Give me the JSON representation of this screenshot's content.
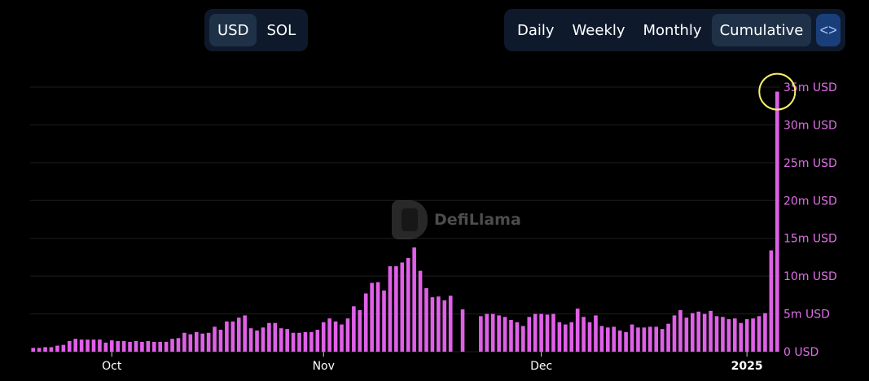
{
  "currency_toggle": {
    "options": [
      "USD",
      "SOL"
    ],
    "selected": "USD"
  },
  "period_toggle": {
    "options": [
      "Daily",
      "Weekly",
      "Monthly",
      "Cumulative"
    ],
    "selected": "Cumulative",
    "embed_icon": "code-icon"
  },
  "watermark": {
    "text": "DefiLlama"
  },
  "colors": {
    "bar": "#e060e8",
    "grid": "#1e1e24",
    "axis_text": "#ffffff",
    "y_label": "#e06fe8",
    "highlight_circle": "#f5f06a"
  },
  "chart_data": {
    "type": "bar",
    "title": "",
    "xlabel": "",
    "ylabel": "",
    "ylim": [
      0,
      35
    ],
    "y_unit": "m USD",
    "y_ticks": [
      "0 USD",
      "5m USD",
      "10m USD",
      "15m USD",
      "20m USD",
      "25m USD",
      "30m USD",
      "35m USD"
    ],
    "x_ticks": [
      "Oct",
      "Nov",
      "Dec",
      "2025"
    ],
    "x_tick_index": [
      13,
      48,
      84,
      118
    ],
    "grid": true,
    "highlight": "circle around last bar",
    "values": [
      0.5,
      0.5,
      0.6,
      0.6,
      0.8,
      0.9,
      1.4,
      1.7,
      1.6,
      1.6,
      1.6,
      1.6,
      1.2,
      1.5,
      1.4,
      1.4,
      1.3,
      1.4,
      1.3,
      1.4,
      1.3,
      1.3,
      1.3,
      1.7,
      1.8,
      2.5,
      2.3,
      2.6,
      2.4,
      2.5,
      3.3,
      2.9,
      4.0,
      4.0,
      4.5,
      4.8,
      3.1,
      2.8,
      3.2,
      3.8,
      3.8,
      3.1,
      3.0,
      2.5,
      2.5,
      2.6,
      2.6,
      2.9,
      3.9,
      4.4,
      4.0,
      3.6,
      4.4,
      6.0,
      5.5,
      7.7,
      9.1,
      9.2,
      8.1,
      11.3,
      11.3,
      11.8,
      12.4,
      13.8,
      10.7,
      8.4,
      7.2,
      7.3,
      6.8,
      7.4,
      0,
      5.6,
      0,
      0,
      4.7,
      5.0,
      5.0,
      4.8,
      4.6,
      4.2,
      3.9,
      3.4,
      4.6,
      5.0,
      5.0,
      4.9,
      5.0,
      3.9,
      3.6,
      3.9,
      5.7,
      4.6,
      3.9,
      4.8,
      3.4,
      3.2,
      3.3,
      2.8,
      2.6,
      3.6,
      3.2,
      3.2,
      3.3,
      3.3,
      3.0,
      3.7,
      4.8,
      5.5,
      4.5,
      5.1,
      5.3,
      5.0,
      5.4,
      4.7,
      4.6,
      4.3,
      4.4,
      3.8,
      4.3,
      4.4,
      4.7,
      5.1,
      13.4,
      34.4
    ]
  }
}
